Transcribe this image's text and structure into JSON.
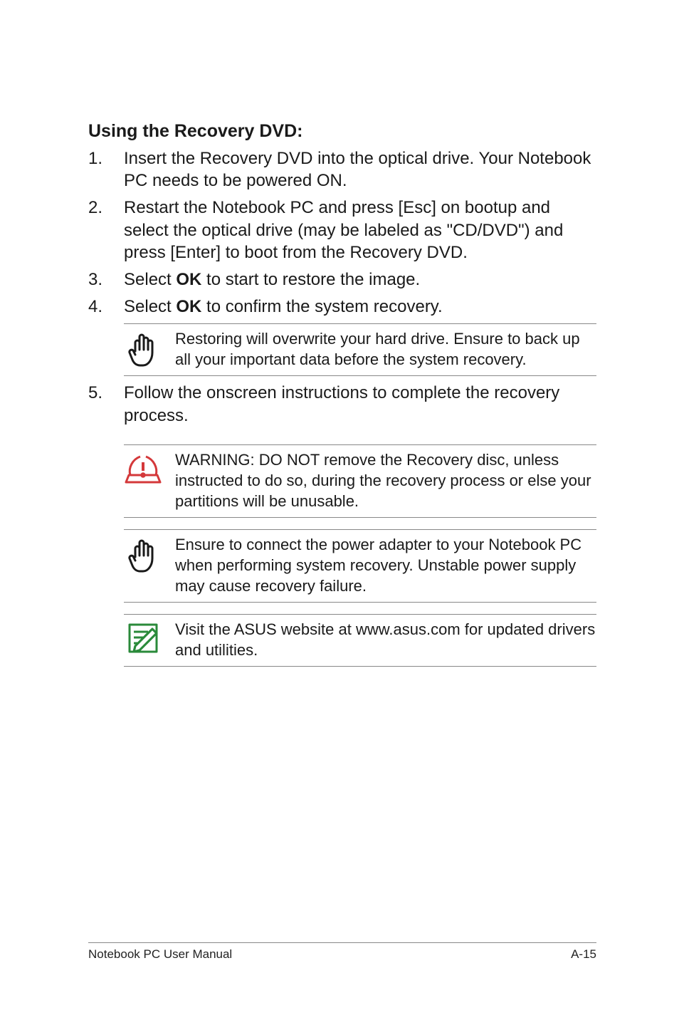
{
  "heading": "Using the Recovery DVD:",
  "steps": [
    {
      "html": "Insert the Recovery DVD into the optical drive. Your Notebook PC needs to be powered ON."
    },
    {
      "html": "Restart the Notebook PC and press [Esc] on bootup and select the optical drive (may be labeled as \"CD/DVD\") and press [Enter] to boot from the Recovery DVD."
    },
    {
      "html": "Select <strong class=b>OK</strong> to start to restore the image."
    },
    {
      "html": "Select <strong class=b>OK</strong> to confirm the system recovery."
    }
  ],
  "callout_after_4": {
    "icon": "hand",
    "text": "Restoring will overwrite your hard drive. Ensure to back up all your important data before the system recovery."
  },
  "step5": "Follow the onscreen instructions to complete the recovery process.",
  "post_callouts": [
    {
      "icon": "warning",
      "text": "WARNING: DO NOT remove the Recovery disc, unless instructed to do so, during the recovery process or else your partitions will be unusable."
    },
    {
      "icon": "hand",
      "text": "Ensure to connect the power adapter to your Notebook PC when performing system recovery. Unstable power supply may cause recovery failure."
    },
    {
      "icon": "note",
      "text": "Visit the ASUS website at www.asus.com for updated drivers and utilities."
    }
  ],
  "footer_left": "Notebook PC User Manual",
  "footer_right": "A-15",
  "icon_colors": {
    "hand": "#1a1a1a",
    "warning": "#d4383a",
    "note": "#2a8a3a"
  }
}
